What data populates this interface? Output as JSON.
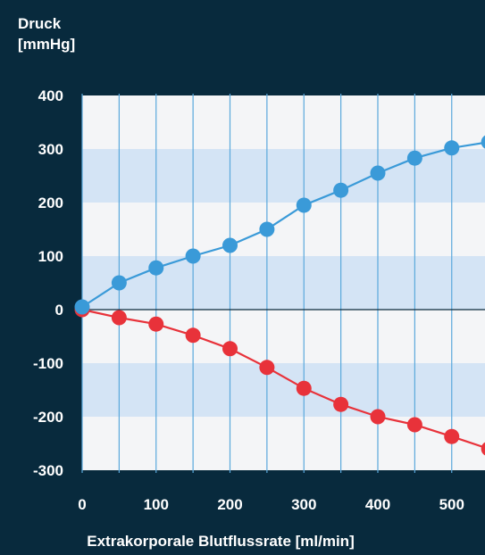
{
  "chart_data": {
    "type": "line",
    "ylabel_lines": [
      "Druck",
      "[mmHg]"
    ],
    "xlabel": "Extrakorporale Blutflussrate [ml/min]",
    "x_ticks": [
      0,
      100,
      200,
      300,
      400,
      500
    ],
    "y_ticks": [
      400,
      300,
      200,
      100,
      0,
      -100,
      -200,
      -300
    ],
    "xlim": [
      0,
      550
    ],
    "ylim": [
      -300,
      400
    ],
    "grid": true,
    "series": [
      {
        "color": "#3a9ad8",
        "x": [
          0,
          50,
          100,
          150,
          200,
          250,
          300,
          350,
          400,
          450,
          500,
          550
        ],
        "y": [
          5,
          50,
          78,
          100,
          120,
          150,
          195,
          223,
          255,
          283,
          302,
          313
        ]
      },
      {
        "color": "#e8323a",
        "x": [
          0,
          50,
          100,
          150,
          200,
          250,
          300,
          350,
          400,
          450,
          500,
          550
        ],
        "y": [
          0,
          -15,
          -27,
          -48,
          -73,
          -108,
          -147,
          -177,
          -200,
          -215,
          -237,
          -260
        ]
      }
    ]
  }
}
